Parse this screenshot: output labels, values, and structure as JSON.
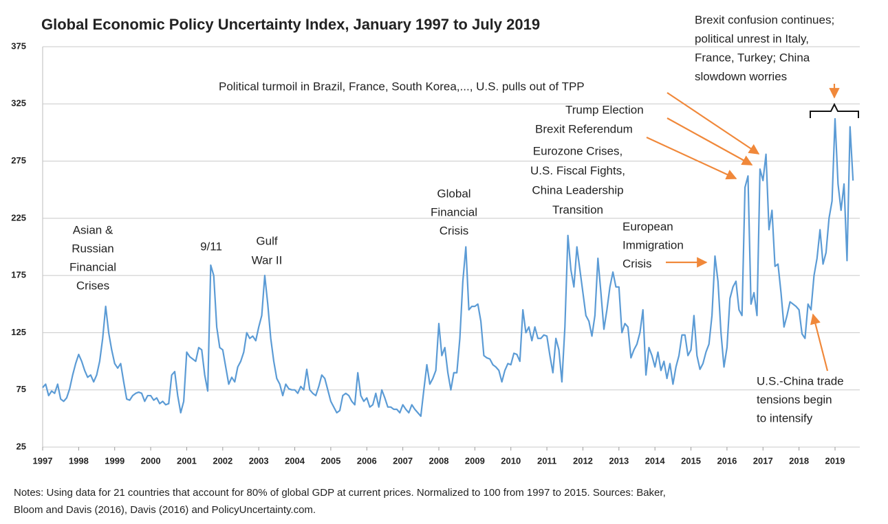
{
  "chart_data": {
    "type": "line",
    "title": "Global Economic Policy Uncertainty Index, January 1997 to July 2019",
    "color": "#5b9bd5",
    "grid": true,
    "ylim": [
      25,
      375
    ],
    "yticks": [
      25,
      75,
      125,
      175,
      225,
      275,
      325,
      375
    ],
    "categories": [
      "1997",
      null,
      null,
      null,
      null,
      null,
      null,
      null,
      null,
      null,
      null,
      null,
      "1998",
      null,
      null,
      null,
      null,
      null,
      null,
      null,
      null,
      null,
      null,
      null,
      "1999",
      null,
      null,
      null,
      null,
      null,
      null,
      null,
      null,
      null,
      null,
      null,
      "2000",
      null,
      null,
      null,
      null,
      null,
      null,
      null,
      null,
      null,
      null,
      null,
      "2001",
      null,
      null,
      null,
      null,
      null,
      null,
      null,
      null,
      null,
      null,
      null,
      "2002",
      null,
      null,
      null,
      null,
      null,
      null,
      null,
      null,
      null,
      null,
      null,
      "2003",
      null,
      null,
      null,
      null,
      null,
      null,
      null,
      null,
      null,
      null,
      null,
      "2004",
      null,
      null,
      null,
      null,
      null,
      null,
      null,
      null,
      null,
      null,
      null,
      "2005",
      null,
      null,
      null,
      null,
      null,
      null,
      null,
      null,
      null,
      null,
      null,
      "2006",
      null,
      null,
      null,
      null,
      null,
      null,
      null,
      null,
      null,
      null,
      null,
      "2007",
      null,
      null,
      null,
      null,
      null,
      null,
      null,
      null,
      null,
      null,
      null,
      "2008",
      null,
      null,
      null,
      null,
      null,
      null,
      null,
      null,
      null,
      null,
      null,
      "2009",
      null,
      null,
      null,
      null,
      null,
      null,
      null,
      null,
      null,
      null,
      null,
      "2010",
      null,
      null,
      null,
      null,
      null,
      null,
      null,
      null,
      null,
      null,
      null,
      "2011",
      null,
      null,
      null,
      null,
      null,
      null,
      null,
      null,
      null,
      null,
      null,
      "2012",
      null,
      null,
      null,
      null,
      null,
      null,
      null,
      null,
      null,
      null,
      null,
      "2013",
      null,
      null,
      null,
      null,
      null,
      null,
      null,
      null,
      null,
      null,
      null,
      "2014",
      null,
      null,
      null,
      null,
      null,
      null,
      null,
      null,
      null,
      null,
      null,
      "2015",
      null,
      null,
      null,
      null,
      null,
      null,
      null,
      null,
      null,
      null,
      null,
      "2016",
      null,
      null,
      null,
      null,
      null,
      null,
      null,
      null,
      null,
      null,
      null,
      "2017",
      null,
      null,
      null,
      null,
      null,
      null,
      null,
      null,
      null,
      null,
      null,
      "2018",
      null,
      null,
      null,
      null,
      null,
      null,
      null,
      null,
      null,
      null,
      null,
      "2019",
      null,
      null,
      null,
      null,
      null,
      null
    ],
    "values": [
      77,
      80,
      70,
      74,
      72,
      80,
      67,
      65,
      68,
      76,
      88,
      98,
      106,
      100,
      92,
      86,
      88,
      82,
      88,
      100,
      120,
      148,
      125,
      110,
      98,
      94,
      98,
      82,
      67,
      66,
      70,
      72,
      73,
      72,
      65,
      70,
      70,
      66,
      68,
      63,
      65,
      62,
      63,
      88,
      91,
      70,
      55,
      65,
      108,
      104,
      102,
      100,
      112,
      110,
      88,
      74,
      184,
      175,
      130,
      112,
      110,
      95,
      80,
      86,
      82,
      95,
      100,
      108,
      125,
      120,
      122,
      118,
      130,
      140,
      175,
      150,
      120,
      100,
      85,
      80,
      70,
      80,
      76,
      75,
      75,
      72,
      78,
      75,
      93,
      75,
      72,
      70,
      78,
      88,
      85,
      75,
      65,
      60,
      55,
      57,
      70,
      72,
      70,
      65,
      62,
      90,
      70,
      65,
      68,
      60,
      62,
      72,
      60,
      75,
      68,
      60,
      60,
      58,
      58,
      55,
      62,
      58,
      55,
      62,
      58,
      55,
      52,
      75,
      97,
      80,
      85,
      92,
      133,
      105,
      112,
      90,
      75,
      90,
      90,
      120,
      170,
      200,
      145,
      148,
      148,
      150,
      135,
      105,
      103,
      102,
      97,
      95,
      92,
      82,
      92,
      98,
      97,
      107,
      106,
      100,
      145,
      125,
      130,
      118,
      130,
      120,
      120,
      123,
      122,
      105,
      90,
      120,
      110,
      82,
      130,
      210,
      180,
      165,
      200,
      180,
      160,
      140,
      135,
      122,
      140,
      190,
      160,
      128,
      145,
      165,
      178,
      165,
      165,
      125,
      133,
      130,
      103,
      110,
      115,
      125,
      145,
      88,
      112,
      105,
      95,
      108,
      92,
      100,
      85,
      98,
      80,
      95,
      105,
      123,
      123,
      105,
      110,
      140,
      105,
      93,
      98,
      108,
      115,
      140,
      192,
      170,
      125,
      95,
      112,
      155,
      165,
      170,
      145,
      140,
      252,
      262,
      150,
      160,
      140,
      268,
      258,
      281,
      215,
      232,
      183,
      185,
      160,
      130,
      140,
      152,
      150,
      148,
      145,
      124,
      120,
      150,
      145,
      175,
      190,
      215,
      185,
      195,
      225,
      240,
      312,
      255,
      232,
      255,
      188,
      305,
      258
    ],
    "annotations": [
      {
        "lines": [
          "Asian &",
          "Russian",
          "Financial",
          "Crises"
        ]
      },
      {
        "lines": [
          "9/11"
        ]
      },
      {
        "lines": [
          "Gulf",
          "War II"
        ]
      },
      {
        "lines": [
          "Global",
          "Financial",
          "Crisis"
        ]
      },
      {
        "lines": [
          "European",
          "Immigration",
          "Crisis"
        ]
      },
      {
        "lines": [
          "Eurozone Crises,",
          "U.S. Fiscal Fights,",
          "China Leadership",
          "Transition"
        ]
      },
      {
        "lines": [
          "Brexit Referendum"
        ]
      },
      {
        "lines": [
          "Trump Election"
        ]
      },
      {
        "lines": [
          "Political turmoil in Brazil, France, South Korea,..., U.S. pulls out of TPP"
        ]
      },
      {
        "lines": [
          "Brexit confusion continues;",
          "political unrest in Italy,",
          "France, Turkey; China",
          "slowdown worries"
        ]
      },
      {
        "lines": [
          "U.S.-China trade",
          "tensions begin",
          "to intensify"
        ]
      }
    ],
    "notes": [
      "Notes: Using data for 21 countries that account for 80% of global GDP at current prices. Normalized to 100 from 1997 to 2015. Sources: Baker,",
      "Bloom and Davis (2016), Davis (2016) and PolicyUncertainty.com."
    ]
  }
}
